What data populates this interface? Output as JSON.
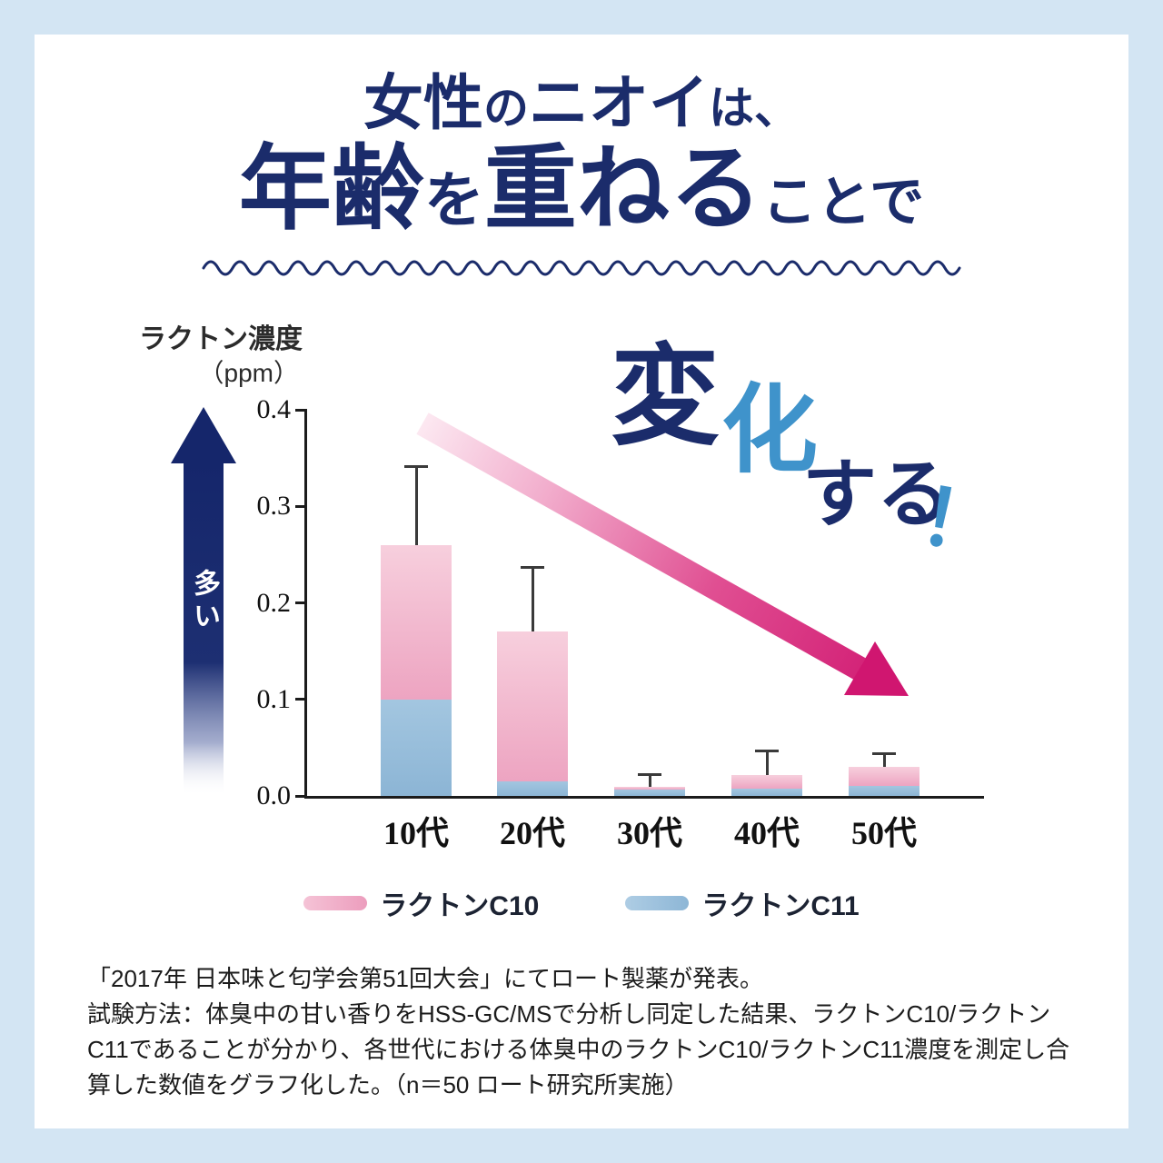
{
  "title": {
    "l1a": "女性",
    "l1b": "の",
    "l1c": "ニオイ",
    "l1d": "は、",
    "l2a": "年齢",
    "l2b": "を",
    "l2c": "重ねる",
    "l2d": "ことで"
  },
  "overlay": {
    "change1": "変",
    "change2": "化",
    "change3": "する",
    "change4": "！"
  },
  "chart_data": {
    "type": "bar",
    "stacked": true,
    "title": "",
    "ylabel": "ラクトン濃度",
    "ylabel_unit": "（ppm）",
    "more_label": "多い",
    "ylim": [
      0,
      0.4
    ],
    "yticks": [
      "0.4",
      "0.3",
      "0.2",
      "0.1",
      "0.0"
    ],
    "categories": [
      "10代",
      "20代",
      "30代",
      "40代",
      "50代"
    ],
    "series": [
      {
        "name": "ラクトンC11",
        "color_top": "#a3c6e0",
        "color_bottom": "#8cb5d5",
        "values": [
          0.1,
          0.015,
          0.007,
          0.008,
          0.01
        ]
      },
      {
        "name": "ラクトンC10",
        "color_top": "#f7cfdd",
        "color_bottom": "#eda4c1",
        "values": [
          0.16,
          0.155,
          0.002,
          0.014,
          0.02
        ]
      }
    ],
    "totals": [
      0.26,
      0.17,
      0.009,
      0.022,
      0.03
    ],
    "error_top": [
      0.34,
      0.235,
      0.021,
      0.045,
      0.042
    ],
    "grid": false,
    "legend_position": "bottom"
  },
  "legend": {
    "items": [
      {
        "label": "ラクトンC10",
        "color_left": "#f5c3d6",
        "color_right": "#ec9dbd"
      },
      {
        "label": "ラクトンC11",
        "color_left": "#aecde4",
        "color_right": "#8db6d6"
      }
    ]
  },
  "footnote": {
    "line1": "「2017年 日本味と匂学会第51回大会」にてロート製薬が発表。",
    "line2": "試験方法：体臭中の甘い香りをHSS-GC/MSで分析し同定した結果、ラクトンC10/ラクトンC11であることが分かり、各世代における体臭中のラクトンC10/ラクトンC11濃度を測定し合算した数値をグラフ化した。（n＝50 ロート研究所実施）"
  },
  "colors": {
    "page_bg": "#d3e5f3",
    "panel_bg": "#ffffff",
    "navy": "#1b2c6b",
    "accent_blue": "#3f93cb",
    "magenta": "#d01670",
    "trend_start": "#fce8f1",
    "trend_end": "#d01670",
    "up_arrow_navy": "#15266b",
    "axis_color": "#1c1c1c"
  }
}
